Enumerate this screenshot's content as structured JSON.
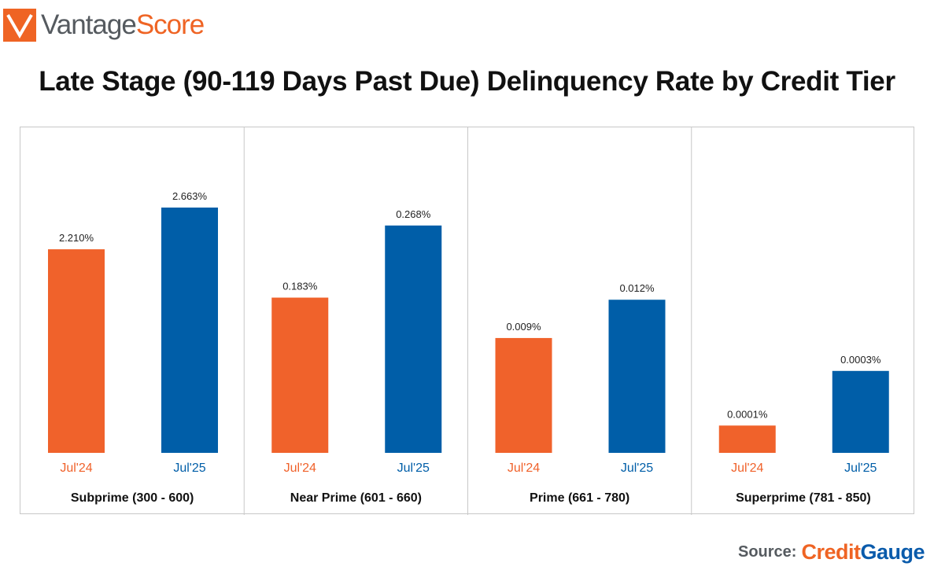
{
  "header": {
    "logo_part1": "Vantage",
    "logo_part2": "Score",
    "title": "Late Stage (90-119 Days Past Due) Delinquency Rate by Credit Tier"
  },
  "source": {
    "label": "Source:",
    "brand_part1": "Credit",
    "brand_part2": "Gauge"
  },
  "colors": {
    "jul24": "#f0622b",
    "jul25": "#005ea8",
    "logo_orange": "#ef6424"
  },
  "chart_data": {
    "type": "bar",
    "title": "Late Stage (90-119 Days Past Due) Delinquency Rate by Credit Tier",
    "layout": "faceted panels, one per credit tier, each with independent scale",
    "series_names": [
      "Jul'24",
      "Jul'25"
    ],
    "panels": [
      {
        "tier": "Subprime (300 - 600)",
        "categories": [
          "Jul'24",
          "Jul'25"
        ],
        "values": [
          2.21,
          2.663
        ],
        "labels": [
          "2.210%",
          "2.663%"
        ],
        "ymax": 3.38
      },
      {
        "tier": "Near Prime (601 - 660)",
        "categories": [
          "Jul'24",
          "Jul'25"
        ],
        "values": [
          0.183,
          0.268
        ],
        "labels": [
          "0.183%",
          "0.268%"
        ],
        "ymax": 0.367
      },
      {
        "tier": "Prime (661 - 780)",
        "categories": [
          "Jul'24",
          "Jul'25"
        ],
        "values": [
          0.009,
          0.012
        ],
        "labels": [
          "0.009%",
          "0.012%"
        ],
        "ymax": 0.0244
      },
      {
        "tier": "Superprime (781 - 850)",
        "categories": [
          "Jul'24",
          "Jul'25"
        ],
        "values": [
          0.0001,
          0.0003
        ],
        "labels": [
          "0.0001%",
          "0.0003%"
        ],
        "ymax": 0.00114
      }
    ],
    "xlabel": "",
    "ylabel": ""
  }
}
